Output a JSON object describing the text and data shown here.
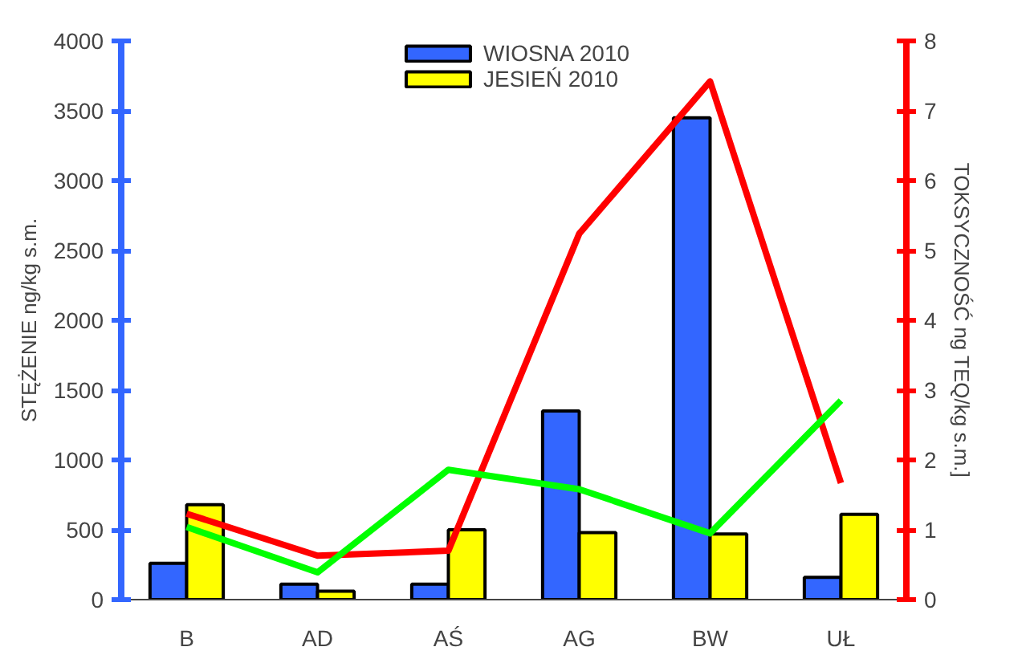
{
  "chart_data": {
    "type": "bar",
    "categories": [
      "B",
      "AD",
      "AŚ",
      "AG",
      "BW",
      "UŁ"
    ],
    "ylabel": "STĘŻENIE ng/kg s.m.",
    "y2label": "TOKSYCZNOŚĆ ng TEQ/kg s.m.]",
    "ylim": [
      0,
      4000
    ],
    "yticks": [
      0,
      500,
      1000,
      1500,
      2000,
      2500,
      3000,
      3500,
      4000
    ],
    "y2lim": [
      0,
      8
    ],
    "y2ticks": [
      0,
      1,
      2,
      3,
      4,
      5,
      6,
      7,
      8
    ],
    "legend": "top",
    "grid": false,
    "series": [
      {
        "name": "WIOSNA 2010",
        "color": "#3366ff",
        "values": [
          260,
          110,
          110,
          1350,
          3450,
          160
        ]
      },
      {
        "name": "JESIEŃ 2010",
        "color": "#ffff00",
        "values": [
          680,
          60,
          500,
          480,
          470,
          610
        ]
      },
      {
        "type": "line",
        "axis": "y2",
        "color": "#ff0000",
        "values": [
          1.23,
          0.63,
          0.7,
          5.24,
          7.42,
          1.67
        ]
      },
      {
        "type": "line",
        "axis": "y2",
        "color": "#00ff00",
        "values": [
          1.04,
          0.39,
          1.86,
          1.58,
          0.95,
          2.85
        ]
      }
    ]
  }
}
